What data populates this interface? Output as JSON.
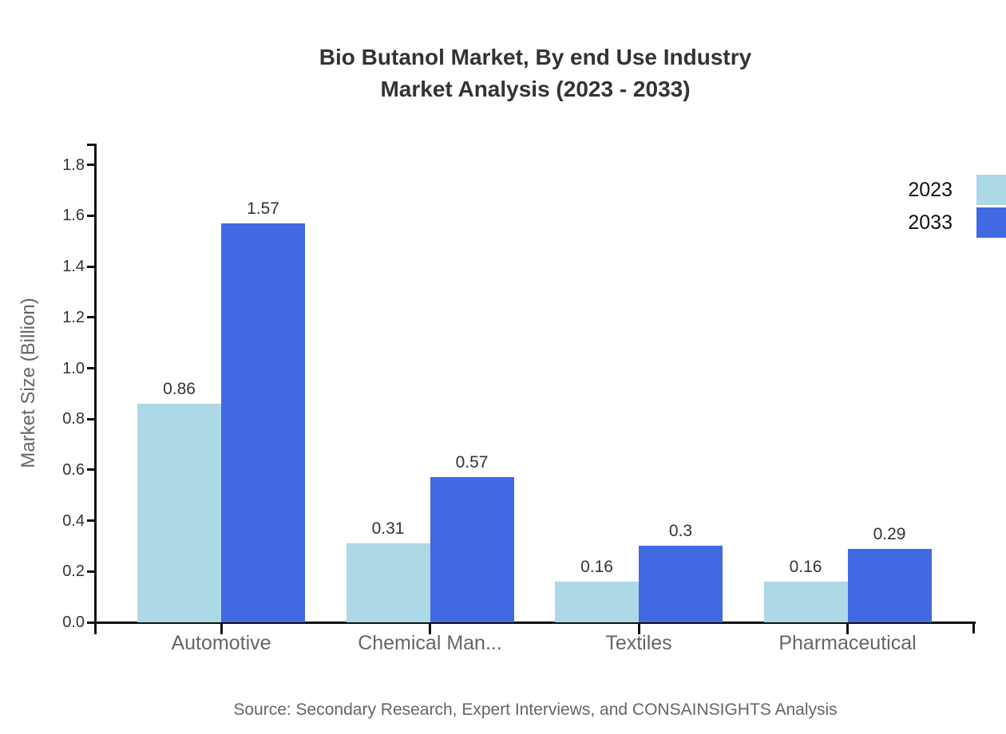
{
  "title": {
    "line1": "Bio Butanol Market, By end Use Industry",
    "line2": "Market Analysis (2023 - 2033)"
  },
  "source_note": "Source: Secondary Research, Expert Interviews, and CONSAINSIGHTS Analysis",
  "chart_data": {
    "type": "bar",
    "title": "Bio Butanol Market, By end Use Industry Market Analysis (2023 - 2033)",
    "categories": [
      "Automotive",
      "Chemical Man...",
      "Textiles",
      "Pharmaceutical"
    ],
    "series": [
      {
        "name": "2023",
        "color": "#ADD8E6",
        "values": [
          0.86,
          0.31,
          0.16,
          0.16
        ],
        "value_labels": [
          "0.86",
          "0.31",
          "0.16",
          "0.16"
        ]
      },
      {
        "name": "2033",
        "color": "#4169E1",
        "values": [
          1.57,
          0.57,
          0.3,
          0.29
        ],
        "value_labels": [
          "1.57",
          "0.57",
          "0.3",
          "0.29"
        ]
      }
    ],
    "xlabel": "",
    "ylabel": "Market Size (Billion)",
    "ylim": [
      0,
      1.88
    ],
    "yticks": [
      0.0,
      0.2,
      0.4,
      0.6,
      0.8,
      1.0,
      1.2,
      1.4,
      1.6,
      1.8
    ],
    "ytick_labels": [
      "0.0",
      "0.2",
      "0.4",
      "0.6",
      "0.8",
      "1.0",
      "1.2",
      "1.4",
      "1.6",
      "1.8"
    ],
    "grid": false,
    "legend_position": "top-right",
    "colors": {
      "axis": "#111111",
      "title_text": "#333333",
      "value_text": "#333333",
      "tick_text": "#333333",
      "category_text": "#666666",
      "axis_title_text": "#666666",
      "legend_text": "#111111",
      "source_text": "#666666",
      "background": "#ffffff"
    }
  }
}
